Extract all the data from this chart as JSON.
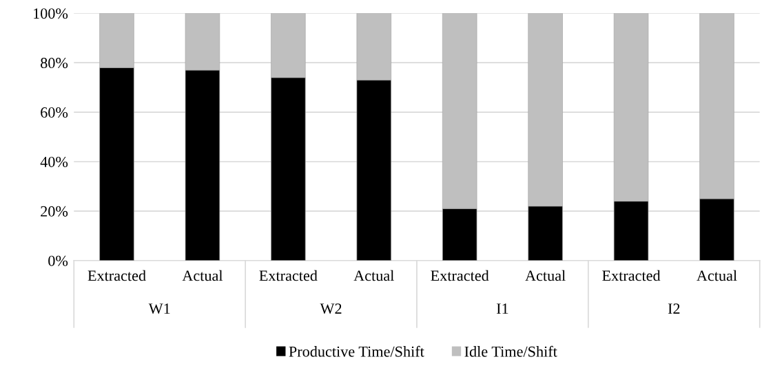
{
  "chart_data": {
    "type": "bar",
    "stacked": true,
    "categories": [
      "Extracted",
      "Actual",
      "Extracted",
      "Actual",
      "Extracted",
      "Actual",
      "Extracted",
      "Actual"
    ],
    "annotations": [
      "W1",
      "W2",
      "I1",
      "I2"
    ],
    "series": [
      {
        "name": "Productive Time/Shift",
        "color": "#000000",
        "values": [
          78,
          77,
          74,
          73,
          21,
          22,
          24,
          25
        ]
      },
      {
        "name": "Idle Time/Shift",
        "color": "#bfbfbf",
        "values": [
          22,
          23,
          26,
          27,
          79,
          78,
          76,
          75
        ]
      }
    ],
    "ylim": [
      0,
      100
    ],
    "yticks": [
      {
        "value": 0,
        "label": "0%"
      },
      {
        "value": 20,
        "label": "20%"
      },
      {
        "value": 40,
        "label": "40%"
      },
      {
        "value": 60,
        "label": "60%"
      },
      {
        "value": 80,
        "label": "80%"
      },
      {
        "value": 100,
        "label": "100%"
      }
    ],
    "grid": "y",
    "legend": "bottom"
  }
}
